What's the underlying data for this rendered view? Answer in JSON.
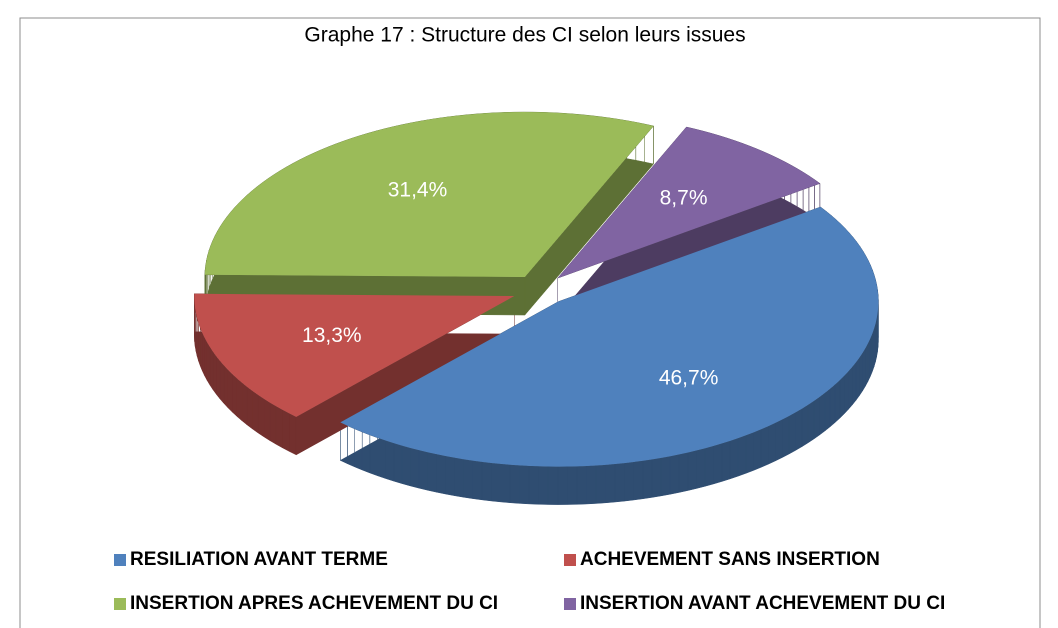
{
  "chart_data": {
    "type": "pie",
    "title": "Graphe 17 : Structure  des  CI selon  leurs issues",
    "categories": [
      "RESILIATION AVANT TERME",
      "ACHEVEMENT SANS INSERTION",
      "INSERTION APRES ACHEVEMENT DU CI",
      "INSERTION AVANT ACHEVEMENT DU CI"
    ],
    "values": [
      46.7,
      13.3,
      31.4,
      8.7
    ],
    "value_labels": [
      "46,7%",
      "13,3%",
      "31,4%",
      "8,7%"
    ],
    "colors": [
      "#4f81bd",
      "#c0504d",
      "#9bbb59",
      "#8064a2"
    ]
  }
}
